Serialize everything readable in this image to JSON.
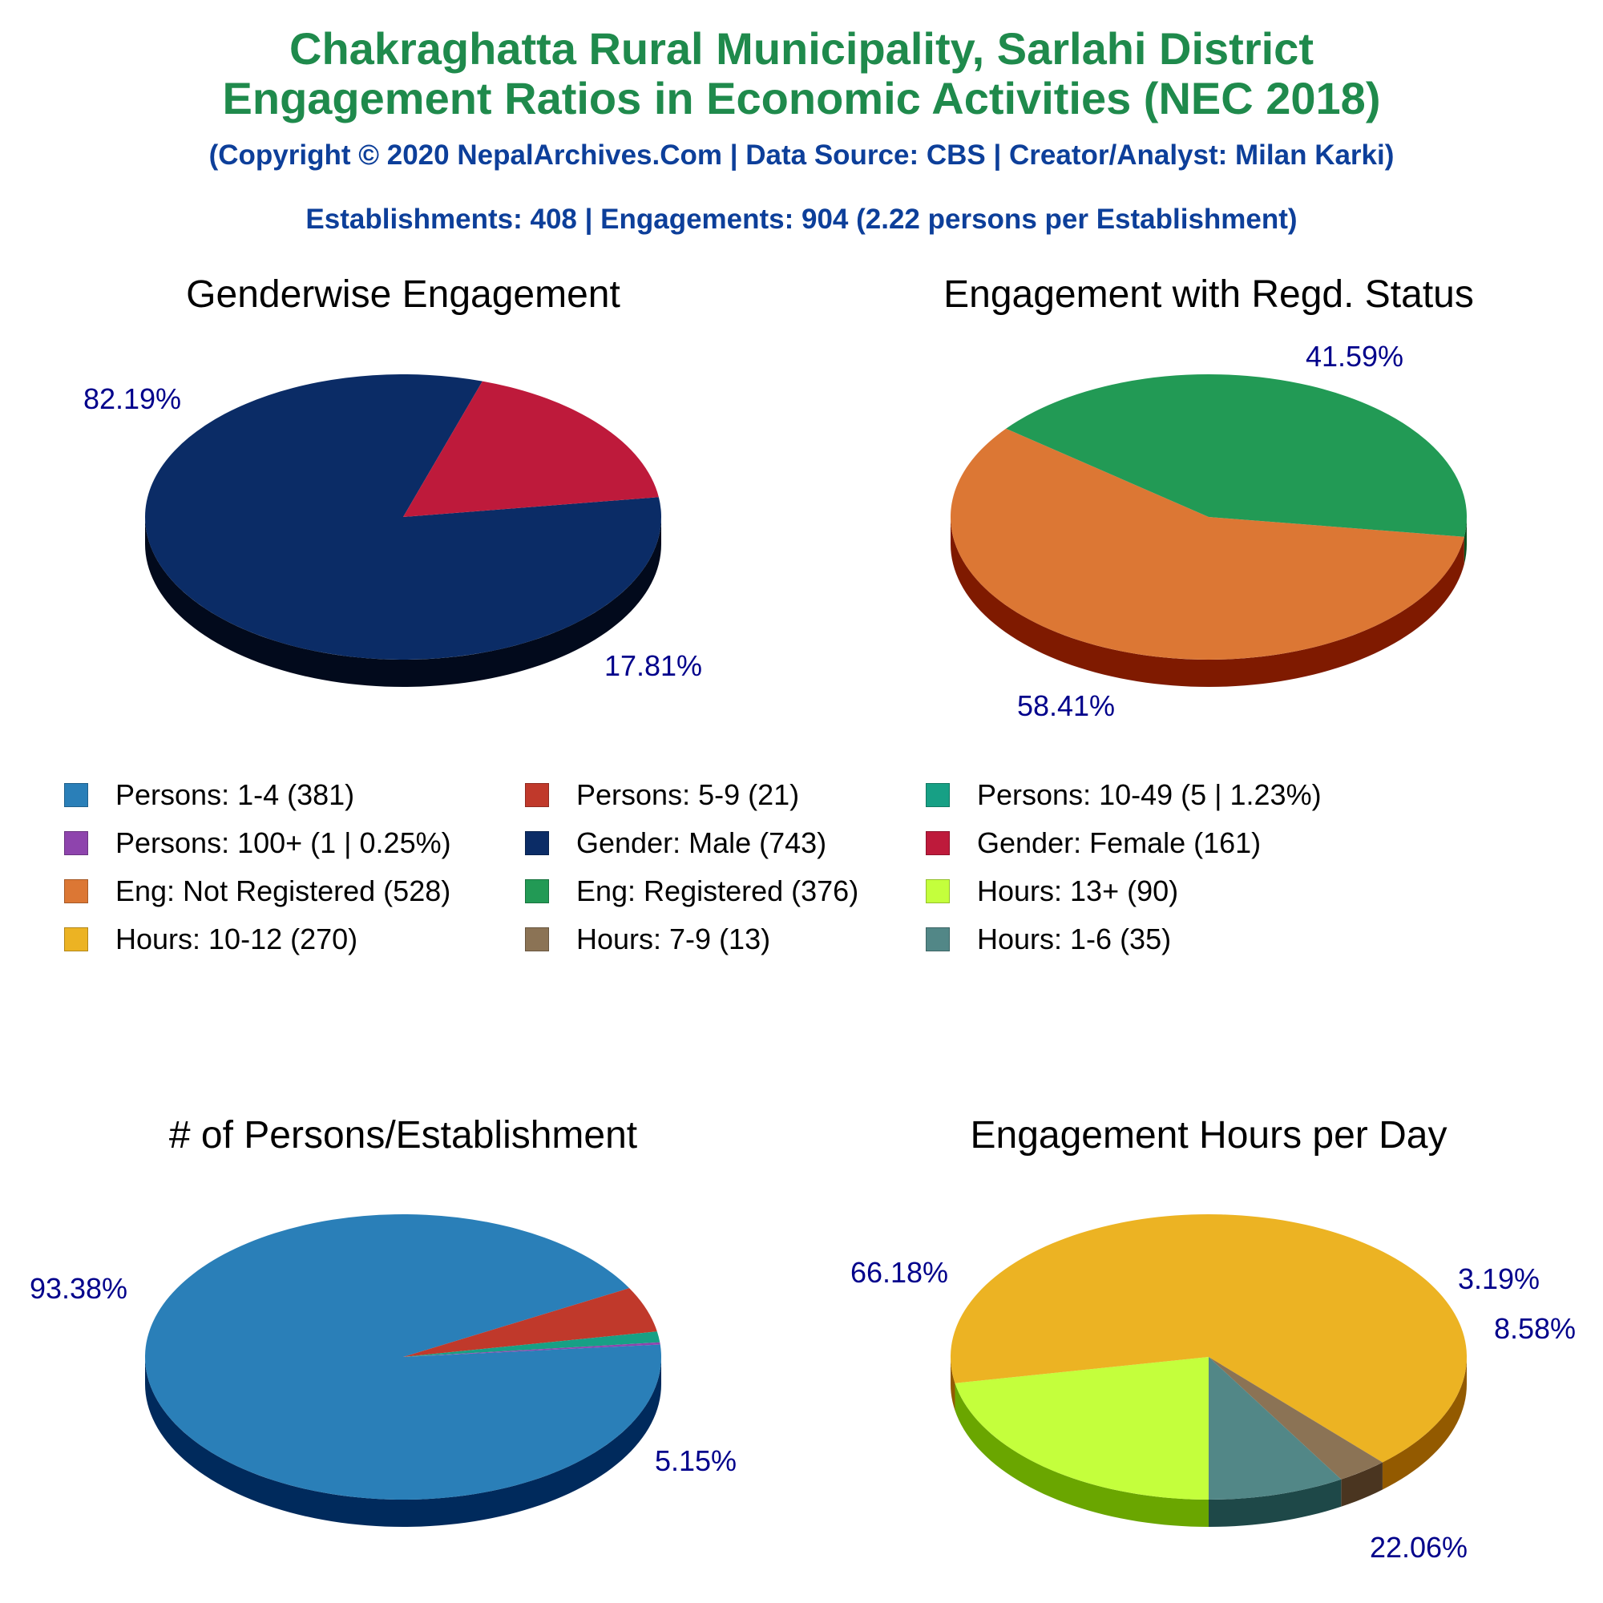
{
  "header": {
    "title_line1": "Chakraghatta Rural Municipality, Sarlahi District",
    "title_line2": "Engagement Ratios in Economic Activities (NEC 2018)",
    "copyright": "(Copyright © 2020 NepalArchives.Com | Data Source: CBS | Creator/Analyst: Milan Karki)",
    "stats": "Establishments: 408 | Engagements: 904 (2.22 persons per Establishment)"
  },
  "colors": {
    "title": "#1f8a4c",
    "subtitle": "#0d3f9a",
    "pct_label": "#00008b"
  },
  "chart_data": [
    {
      "type": "pie",
      "title": "Genderwise Engagement",
      "slices": [
        {
          "name": "Gender: Male",
          "value": 743,
          "pct_label": "82.19%",
          "color": "#0b2c66",
          "side_color": "#020a1c"
        },
        {
          "name": "Gender: Female",
          "value": 161,
          "pct_label": "17.81%",
          "color": "#be1a3b",
          "side_color": "#6b0000"
        }
      ]
    },
    {
      "type": "pie",
      "title": "Engagement with Regd. Status",
      "slices": [
        {
          "name": "Eng: Not Registered",
          "value": 528,
          "pct_label": "58.41%",
          "color": "#dc7734",
          "side_color": "#7f1a00"
        },
        {
          "name": "Eng: Registered",
          "value": 376,
          "pct_label": "41.59%",
          "color": "#229a55",
          "side_color": "#0a4e1e"
        }
      ]
    },
    {
      "type": "pie",
      "title": "# of Persons/Establishment",
      "slices": [
        {
          "name": "Persons: 1-4",
          "value": 381,
          "pct_label": "93.38%",
          "color": "#2a7fb8",
          "side_color": "#002a5c"
        },
        {
          "name": "Persons: 5-9",
          "value": 21,
          "pct_label": "5.15%",
          "color": "#c0392b",
          "side_color": "#6a0000"
        },
        {
          "name": "Persons: 10-49",
          "value": 5,
          "pct_label": "",
          "color": "#17a085",
          "side_color": "#004d3a"
        },
        {
          "name": "Persons: 100+",
          "value": 1,
          "pct_label": "",
          "color": "#8e44ad",
          "side_color": "#3e0a5a"
        }
      ]
    },
    {
      "type": "pie",
      "title": "Engagement Hours per Day",
      "slices": [
        {
          "name": "Hours: 13+",
          "value": 90,
          "pct_label": "22.06%",
          "color": "#c4ff3c",
          "side_color": "#6aa600"
        },
        {
          "name": "Hours: 10-12",
          "value": 270,
          "pct_label": "66.18%",
          "color": "#ecb323",
          "side_color": "#935a00"
        },
        {
          "name": "Hours: 7-9",
          "value": 13,
          "pct_label": "3.19%",
          "color": "#8b7355",
          "side_color": "#4a3520"
        },
        {
          "name": "Hours: 1-6",
          "value": 35,
          "pct_label": "8.58%",
          "color": "#528787",
          "side_color": "#1e4848"
        }
      ]
    }
  ],
  "legend": {
    "items": [
      {
        "label": "Persons: 1-4 (381)",
        "color": "#2a7fb8"
      },
      {
        "label": "Persons: 5-9 (21)",
        "color": "#c0392b"
      },
      {
        "label": "Persons: 10-49 (5 | 1.23%)",
        "color": "#17a085"
      },
      {
        "label": "Persons: 100+ (1 | 0.25%)",
        "color": "#8e44ad"
      },
      {
        "label": "Gender: Male (743)",
        "color": "#0b2c66"
      },
      {
        "label": "Gender: Female (161)",
        "color": "#be1a3b"
      },
      {
        "label": "Eng: Not Registered (528)",
        "color": "#dc7734"
      },
      {
        "label": "Eng: Registered (376)",
        "color": "#229a55"
      },
      {
        "label": "Hours: 13+ (90)",
        "color": "#c4ff3c"
      },
      {
        "label": "Hours: 10-12 (270)",
        "color": "#ecb323"
      },
      {
        "label": "Hours: 7-9 (13)",
        "color": "#8b7355"
      },
      {
        "label": "Hours: 1-6 (35)",
        "color": "#528787"
      }
    ]
  }
}
